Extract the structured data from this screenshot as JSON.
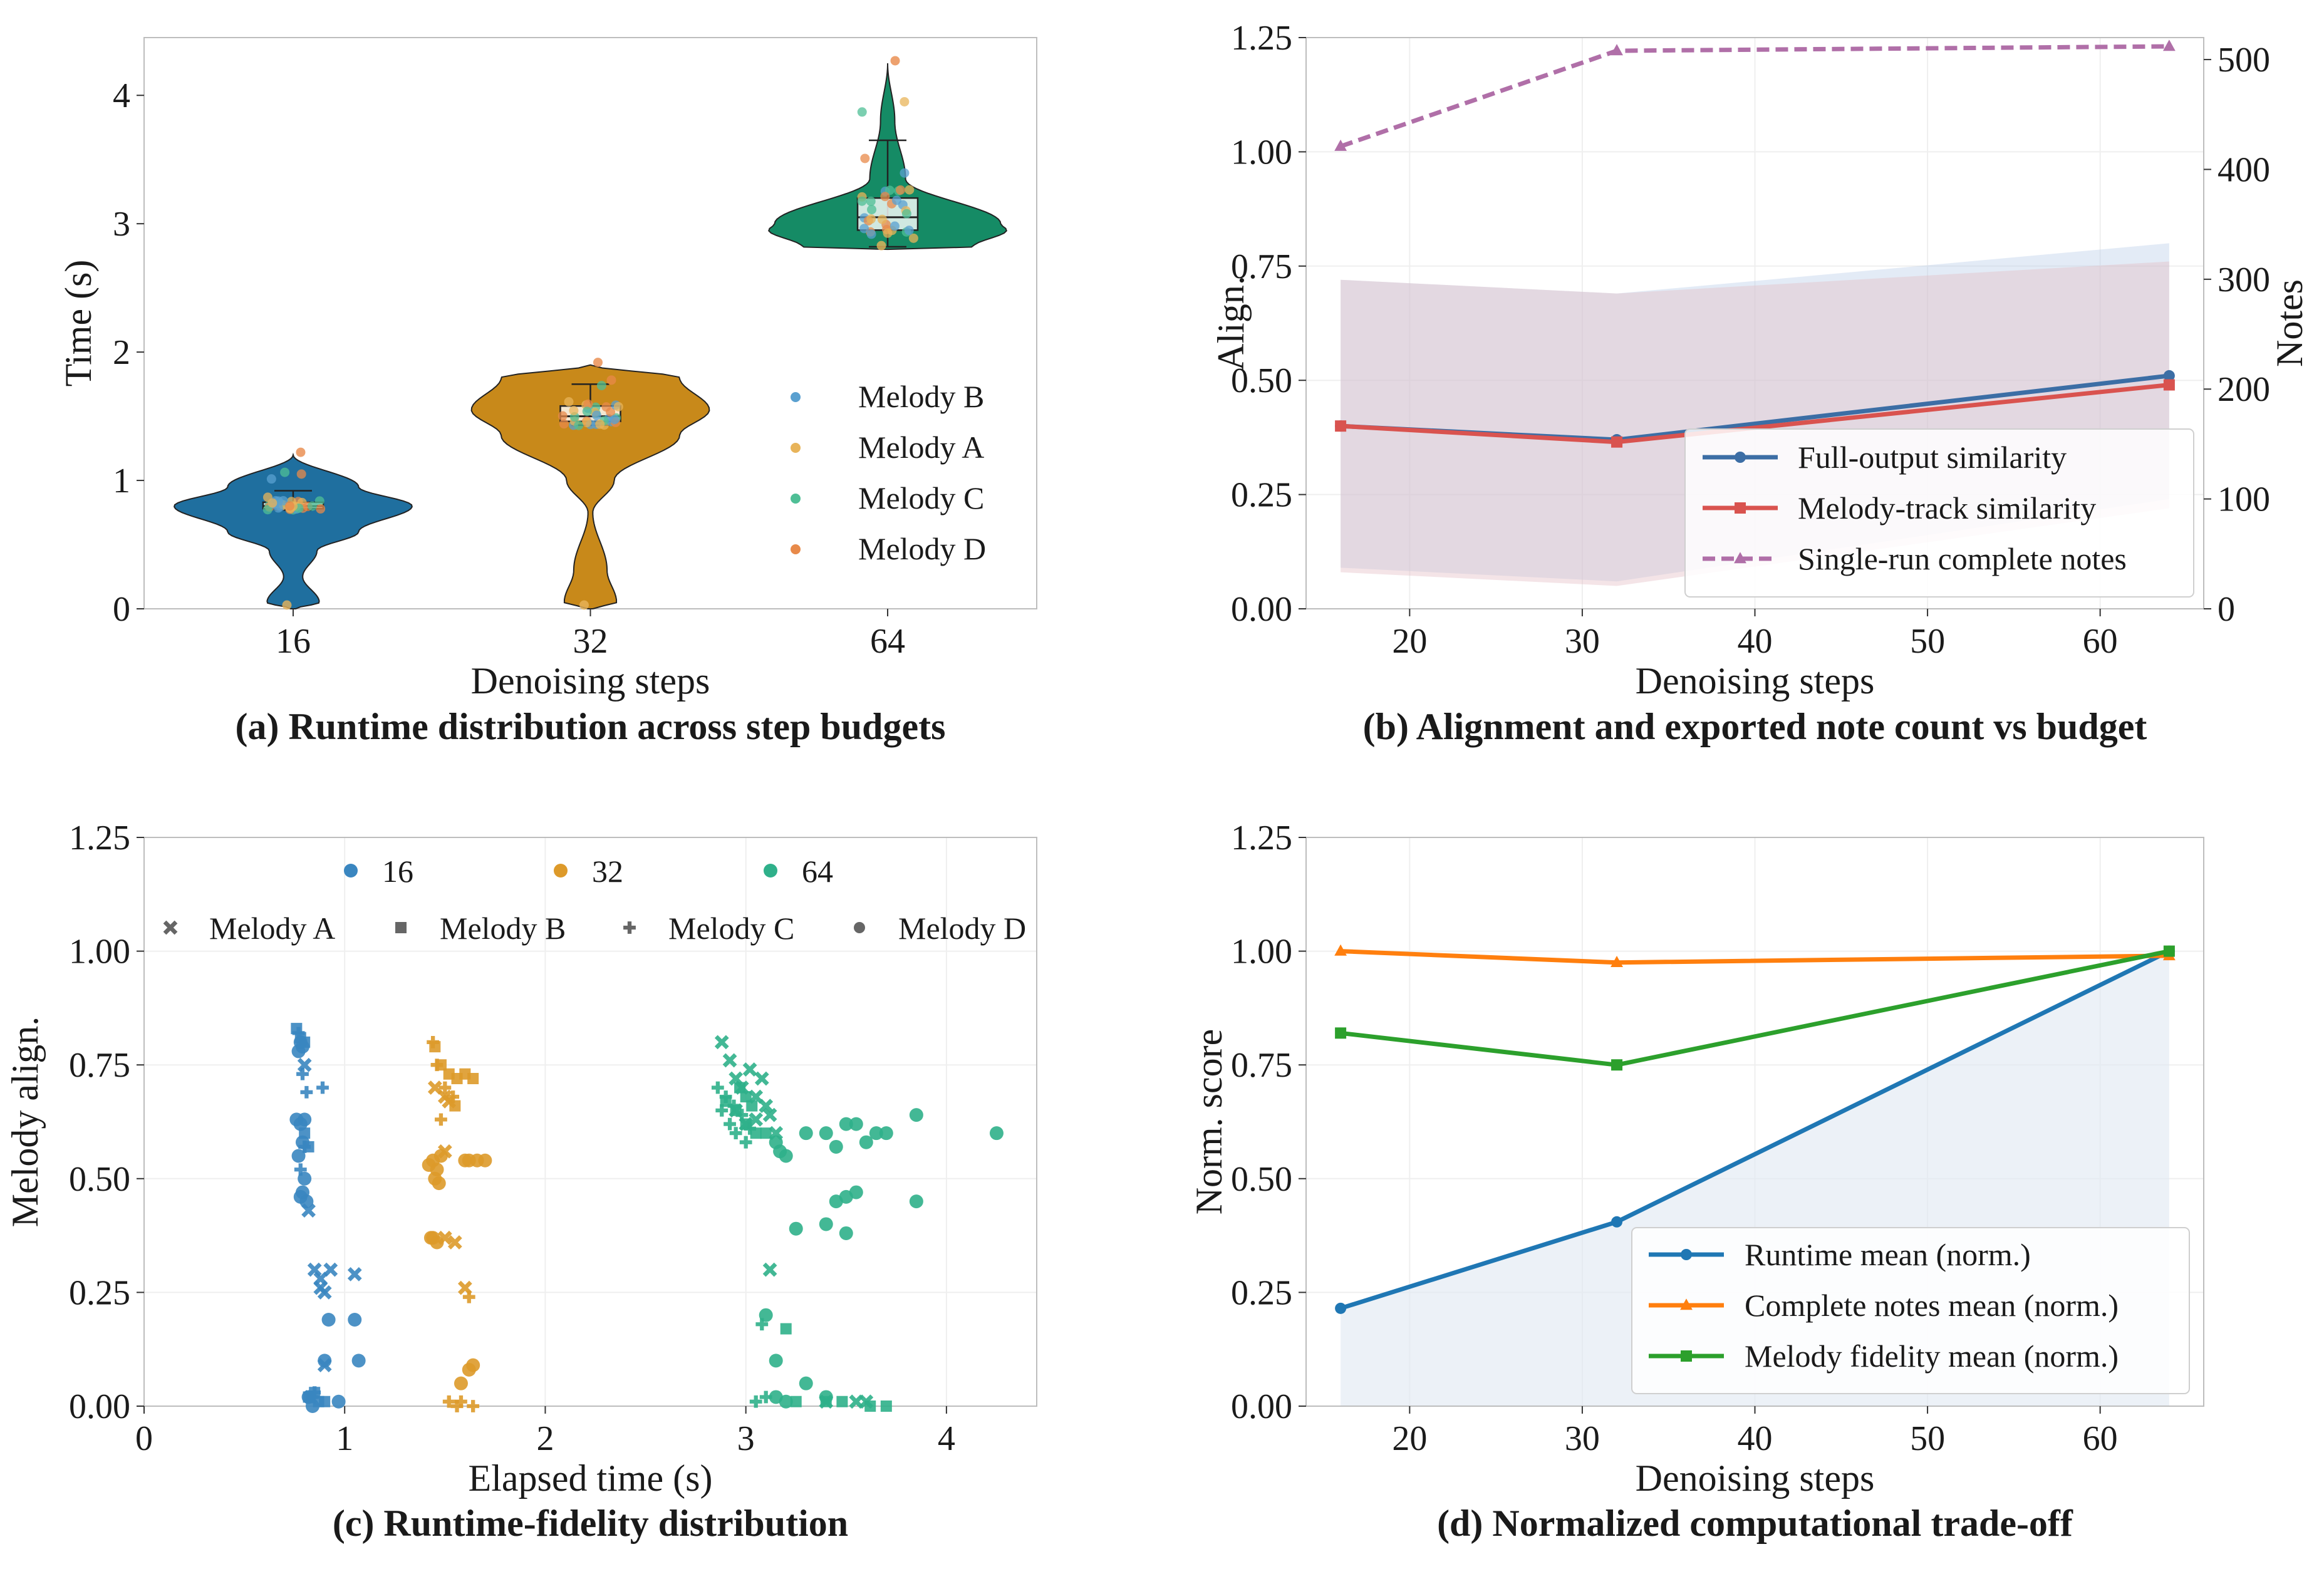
{
  "chart_data": [
    {
      "id": "a",
      "type": "violin",
      "caption": "(a) Runtime distribution across step budgets",
      "xlabel": "Denoising steps",
      "ylabel": "Time (s)",
      "categories": [
        "16",
        "32",
        "64"
      ],
      "ylim": [
        0,
        4.45
      ],
      "yticks": [
        0,
        1,
        2,
        3,
        4
      ],
      "yticklabels": [
        "0",
        "1",
        "2",
        "3",
        "4"
      ],
      "colors": [
        "#1f6f9f",
        "#c8891a",
        "#158b65"
      ],
      "violins": [
        {
          "category": "16",
          "min": 0.0,
          "q1": 0.78,
          "median": 0.8,
          "q3": 0.83,
          "whisker_low": 0.77,
          "whisker_high": 0.92,
          "max": 1.2
        },
        {
          "category": "32",
          "min": 0.0,
          "q1": 1.46,
          "median": 1.5,
          "q3": 1.58,
          "whisker_low": 1.43,
          "whisker_high": 1.75,
          "max": 1.9
        },
        {
          "category": "64",
          "min": 2.8,
          "q1": 2.95,
          "median": 3.05,
          "q3": 3.2,
          "whisker_low": 2.82,
          "whisker_high": 3.65,
          "max": 4.25
        }
      ],
      "legend": {
        "position": "right",
        "entries": [
          "Melody B",
          "Melody A",
          "Melody C",
          "Melody D"
        ],
        "colors": [
          "#5aa0d0",
          "#e8b45a",
          "#4fbf96",
          "#e88a4a"
        ]
      }
    },
    {
      "id": "b",
      "type": "line",
      "caption": "(b) Alignment and exported note count vs budget",
      "xlabel": "Denoising steps",
      "ylabel": "Align.",
      "y2label": "Notes",
      "xlim": [
        14,
        66
      ],
      "ylim": [
        0,
        1.25
      ],
      "y2lim": [
        0,
        520
      ],
      "xticks": [
        20,
        30,
        40,
        50,
        60
      ],
      "xticklabels": [
        "20",
        "30",
        "40",
        "50",
        "60"
      ],
      "yticks": [
        0,
        0.25,
        0.5,
        0.75,
        1.0,
        1.25
      ],
      "yticklabels": [
        "0.00",
        "0.25",
        "0.50",
        "0.75",
        "1.00",
        "1.25"
      ],
      "y2ticks": [
        0,
        100,
        200,
        300,
        400,
        500
      ],
      "y2ticklabels": [
        "0",
        "100",
        "200",
        "300",
        "400",
        "500"
      ],
      "x": [
        16,
        32,
        64
      ],
      "series": [
        {
          "name": "Full-output similarity",
          "values": [
            0.4,
            0.37,
            0.51
          ],
          "band_low": [
            0.09,
            0.06,
            0.24
          ],
          "band_high": [
            0.72,
            0.69,
            0.8
          ],
          "color": "#3c6ea5",
          "marker": "circle",
          "axis": "left"
        },
        {
          "name": "Melody-track similarity",
          "values": [
            0.4,
            0.365,
            0.49
          ],
          "band_low": [
            0.08,
            0.05,
            0.22
          ],
          "band_high": [
            0.72,
            0.69,
            0.76
          ],
          "color": "#d9534f",
          "marker": "square",
          "axis": "left"
        },
        {
          "name": "Single-run complete notes",
          "values": [
            421,
            508,
            512
          ],
          "color": "#b06fa8",
          "marker": "triangle",
          "dashed": true,
          "axis": "right"
        }
      ],
      "legend": {
        "position": "lower-right"
      }
    },
    {
      "id": "c",
      "type": "scatter",
      "caption": "(c) Runtime-fidelity distribution",
      "xlabel": "Elapsed time (s)",
      "ylabel": "Melody align.",
      "xlim": [
        0,
        4.45
      ],
      "ylim": [
        0,
        1.25
      ],
      "xticks": [
        0,
        1,
        2,
        3,
        4
      ],
      "xticklabels": [
        "0",
        "1",
        "2",
        "3",
        "4"
      ],
      "yticks": [
        0,
        0.25,
        0.5,
        0.75,
        1.0,
        1.25
      ],
      "yticklabels": [
        "0.00",
        "0.25",
        "0.50",
        "0.75",
        "1.00",
        "1.25"
      ],
      "hue_legend": {
        "entries": [
          "16",
          "32",
          "64"
        ],
        "colors": [
          "#3a86c0",
          "#dd9a2a",
          "#2fb08a"
        ]
      },
      "style_legend": {
        "entries": [
          "Melody A",
          "Melody B",
          "Melody C",
          "Melody D"
        ],
        "markers": [
          "x",
          "square",
          "plus",
          "circle"
        ]
      },
      "points": [
        {
          "steps": "16",
          "melody": "D",
          "x": [
            0.77,
            0.78,
            0.79,
            0.8,
            0.78,
            0.77,
            0.8,
            0.79,
            0.78,
            0.81,
            0.76,
            0.79,
            0.92,
            0.9,
            1.05,
            1.07,
            0.97,
            0.82,
            0.84
          ],
          "y": [
            0.78,
            0.8,
            0.79,
            0.63,
            0.62,
            0.55,
            0.5,
            0.47,
            0.46,
            0.45,
            0.63,
            0.58,
            0.19,
            0.1,
            0.19,
            0.1,
            0.01,
            0.02,
            0.0
          ]
        },
        {
          "steps": "16",
          "melody": "A",
          "x": [
            0.82,
            0.85,
            0.88,
            0.9,
            0.88,
            0.93,
            1.05,
            0.8,
            0.9,
            0.83
          ],
          "y": [
            0.43,
            0.3,
            0.28,
            0.25,
            0.26,
            0.3,
            0.29,
            0.75,
            0.09,
            0.02
          ]
        },
        {
          "steps": "16",
          "melody": "B",
          "x": [
            0.76,
            0.78,
            0.8,
            0.82,
            0.8,
            0.85,
            0.87,
            0.9,
            0.82
          ],
          "y": [
            0.83,
            0.81,
            0.8,
            0.57,
            0.6,
            0.03,
            0.01,
            0.01,
            0.02
          ]
        },
        {
          "steps": "16",
          "melody": "C",
          "x": [
            0.77,
            0.79,
            0.81,
            0.89,
            0.8,
            0.78,
            0.84,
            0.85
          ],
          "y": [
            0.82,
            0.73,
            0.69,
            0.7,
            0.57,
            0.52,
            0.02,
            0.03
          ]
        },
        {
          "steps": "32",
          "melody": "D",
          "x": [
            1.42,
            1.44,
            1.46,
            1.48,
            1.45,
            1.47,
            1.44,
            1.43,
            1.46,
            1.6,
            1.62,
            1.66,
            1.7,
            1.58,
            1.62,
            1.64
          ],
          "y": [
            0.53,
            0.54,
            0.52,
            0.55,
            0.5,
            0.49,
            0.37,
            0.37,
            0.36,
            0.54,
            0.54,
            0.54,
            0.54,
            0.05,
            0.08,
            0.09
          ]
        },
        {
          "steps": "32",
          "melody": "A",
          "x": [
            1.45,
            1.5,
            1.52,
            1.55,
            1.5,
            1.6,
            1.5
          ],
          "y": [
            0.7,
            0.68,
            0.67,
            0.36,
            0.37,
            0.26,
            0.56
          ]
        },
        {
          "steps": "32",
          "melody": "B",
          "x": [
            1.45,
            1.48,
            1.52,
            1.56,
            1.6,
            1.64,
            1.55
          ],
          "y": [
            0.79,
            0.75,
            0.73,
            0.72,
            0.73,
            0.72,
            0.66
          ]
        },
        {
          "steps": "32",
          "melody": "C",
          "x": [
            1.44,
            1.46,
            1.5,
            1.54,
            1.48,
            1.62,
            1.52,
            1.56,
            1.58,
            1.64
          ],
          "y": [
            0.8,
            0.75,
            0.7,
            0.68,
            0.63,
            0.24,
            0.01,
            0.0,
            0.01,
            0.0
          ]
        },
        {
          "steps": "64",
          "melody": "A",
          "x": [
            2.88,
            2.92,
            2.95,
            2.98,
            3.02,
            3.05,
            3.08,
            3.1,
            3.12,
            3.15,
            2.95,
            3.0,
            3.05,
            3.12,
            3.4,
            3.55,
            3.6
          ],
          "y": [
            0.8,
            0.76,
            0.72,
            0.7,
            0.74,
            0.68,
            0.72,
            0.66,
            0.64,
            0.6,
            0.65,
            0.62,
            0.63,
            0.3,
            0.01,
            0.01,
            0.01
          ]
        },
        {
          "steps": "64",
          "melody": "B",
          "x": [
            2.9,
            2.95,
            3.0,
            3.05,
            3.1,
            3.0,
            3.03,
            2.97,
            3.2,
            3.25,
            3.4,
            3.48,
            3.62,
            3.7
          ],
          "y": [
            0.67,
            0.65,
            0.62,
            0.6,
            0.6,
            0.68,
            0.66,
            0.7,
            0.17,
            0.01,
            0.01,
            0.01,
            0.0,
            0.0
          ]
        },
        {
          "steps": "64",
          "melody": "C",
          "x": [
            2.86,
            2.9,
            2.94,
            2.98,
            2.88,
            2.92,
            3.02,
            2.95,
            3.0,
            3.08,
            3.1,
            3.05
          ],
          "y": [
            0.7,
            0.68,
            0.66,
            0.64,
            0.65,
            0.62,
            0.61,
            0.6,
            0.58,
            0.18,
            0.02,
            0.01
          ]
        },
        {
          "steps": "64",
          "melody": "D",
          "x": [
            3.15,
            3.17,
            3.2,
            3.3,
            3.4,
            3.45,
            3.5,
            3.55,
            3.6,
            3.65,
            3.7,
            3.85,
            4.25,
            3.45,
            3.5,
            3.55,
            3.85,
            3.4,
            3.5,
            3.25,
            3.1,
            3.15,
            3.3,
            3.4,
            3.2,
            3.15
          ],
          "y": [
            0.58,
            0.56,
            0.55,
            0.6,
            0.6,
            0.57,
            0.62,
            0.62,
            0.58,
            0.6,
            0.6,
            0.64,
            0.6,
            0.45,
            0.46,
            0.47,
            0.45,
            0.4,
            0.38,
            0.39,
            0.2,
            0.1,
            0.05,
            0.02,
            0.01,
            0.02
          ]
        }
      ]
    },
    {
      "id": "d",
      "type": "line",
      "caption": "(d) Normalized computational trade-off",
      "xlabel": "Denoising steps",
      "ylabel": "Norm. score",
      "xlim": [
        14,
        66
      ],
      "ylim": [
        0,
        1.25
      ],
      "xticks": [
        20,
        30,
        40,
        50,
        60
      ],
      "xticklabels": [
        "20",
        "30",
        "40",
        "50",
        "60"
      ],
      "yticks": [
        0,
        0.25,
        0.5,
        0.75,
        1.0,
        1.25
      ],
      "yticklabels": [
        "0.00",
        "0.25",
        "0.50",
        "0.75",
        "1.00",
        "1.25"
      ],
      "x": [
        16,
        32,
        64
      ],
      "series": [
        {
          "name": "Runtime mean (norm.)",
          "values": [
            0.215,
            0.405,
            1.0
          ],
          "color": "#1f77b4",
          "marker": "circle",
          "fill_below": true
        },
        {
          "name": "Complete notes mean (norm.)",
          "values": [
            1.0,
            0.975,
            0.99
          ],
          "color": "#ff7f0e",
          "marker": "triangle"
        },
        {
          "name": "Melody fidelity mean (norm.)",
          "values": [
            0.82,
            0.75,
            1.0
          ],
          "color": "#2ca02c",
          "marker": "square"
        }
      ],
      "legend": {
        "position": "lower-right"
      }
    }
  ]
}
